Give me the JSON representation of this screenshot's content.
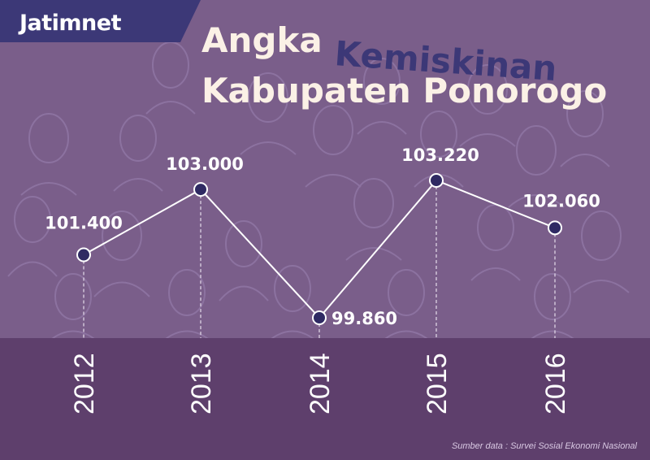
{
  "brand": {
    "logo_text": "Jatimnet"
  },
  "title": {
    "line1_part1": "Angka",
    "line1_part2": "Kemiskinan",
    "line2": "Kabupaten Ponorogo"
  },
  "source_note": "Sumber data :  Survei Sosial Ekonomi Nasional",
  "colors": {
    "background": "#7a5e8a",
    "lower_band": "#5e3f6c",
    "accent_dark": "#3c3877",
    "title_light": "#fbf1e6",
    "line": "#ffffff",
    "marker_fill": "#2f2a63"
  },
  "chart_data": {
    "type": "line",
    "x": [
      "2012",
      "2013",
      "2014",
      "2015",
      "2016"
    ],
    "values": [
      101400,
      103000,
      99860,
      103220,
      102060
    ],
    "data_labels": [
      "101.400",
      "103.000",
      "99.860",
      "103.220",
      "102.060"
    ],
    "title": "Angka Kemiskinan Kabupaten Ponorogo",
    "xlabel": "",
    "ylabel": "",
    "grid": false,
    "legend": "none"
  }
}
